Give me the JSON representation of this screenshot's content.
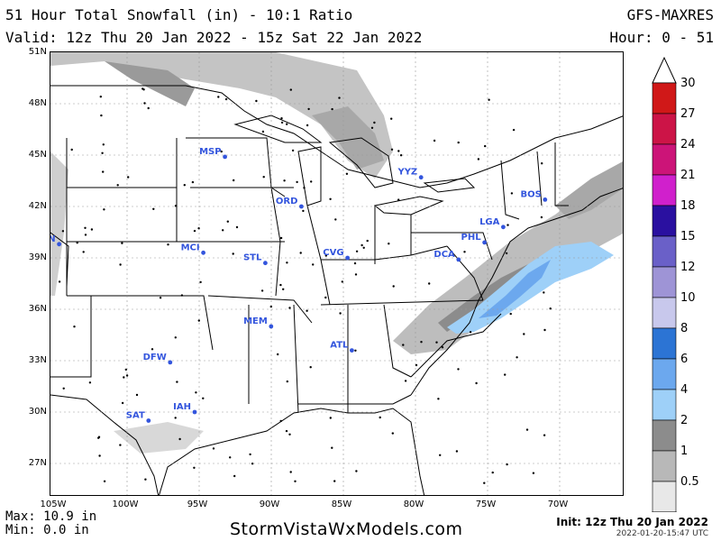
{
  "header": {
    "title": "51 Hour Total Snowfall (in) - 10:1 Ratio",
    "valid": "Valid: 12z Thu 20 Jan 2022 - 15z Sat 22 Jan 2022",
    "model": "GFS-MAXRES",
    "hour": "Hour: 0 - 51"
  },
  "axes": {
    "lat_labels": [
      "51N",
      "48N",
      "45N",
      "42N",
      "39N",
      "36N",
      "33N",
      "30N",
      "27N"
    ],
    "lon_labels": [
      "105W",
      "100W",
      "95W",
      "90W",
      "85W",
      "80W",
      "75W",
      "70W"
    ]
  },
  "cities": [
    {
      "code": "MSP",
      "lon": -93.2,
      "lat": 44.9
    },
    {
      "code": "YYZ",
      "lon": -79.6,
      "lat": 43.7
    },
    {
      "code": "BOS",
      "lon": -71.0,
      "lat": 42.4
    },
    {
      "code": "ORD",
      "lon": -87.9,
      "lat": 42.0
    },
    {
      "code": "DEN",
      "lon": -104.7,
      "lat": 39.8
    },
    {
      "code": "PHL",
      "lon": -75.2,
      "lat": 39.9
    },
    {
      "code": "LGA",
      "lon": -73.9,
      "lat": 40.8
    },
    {
      "code": "MCI",
      "lon": -94.7,
      "lat": 39.3
    },
    {
      "code": "CVG",
      "lon": -84.7,
      "lat": 39.0
    },
    {
      "code": "DCA",
      "lon": -77.0,
      "lat": 38.9
    },
    {
      "code": "STL",
      "lon": -90.4,
      "lat": 38.7
    },
    {
      "code": "MEM",
      "lon": -90.0,
      "lat": 35.0
    },
    {
      "code": "ATL",
      "lon": -84.4,
      "lat": 33.6
    },
    {
      "code": "DFW",
      "lon": -97.0,
      "lat": 32.9
    },
    {
      "code": "IAH",
      "lon": -95.3,
      "lat": 30.0
    },
    {
      "code": "SAT",
      "lon": -98.5,
      "lat": 29.5
    }
  ],
  "legend": {
    "labels": [
      "30",
      "27",
      "24",
      "21",
      "18",
      "15",
      "12",
      "10",
      "8",
      "6",
      "4",
      "2",
      "1",
      "0.5"
    ],
    "colors": [
      "#d01818",
      "#cc1447",
      "#cc1478",
      "#d020cc",
      "#2a10a0",
      "#6a60c8",
      "#9e94d6",
      "#c8c8ec",
      "#2c74d4",
      "#6ca8ee",
      "#9ed0f8",
      "#8c8c8c",
      "#b8b8b8",
      "#e8e8e8"
    ]
  },
  "stats": {
    "max": "Max: 10.9 in",
    "min": "Min: 0.0 in"
  },
  "footer": {
    "brand": "StormVistaWxModels.com",
    "init": "Init: 12z Thu 20 Jan 2022",
    "timestamp": "2022-01-20-15:47 UTC"
  }
}
